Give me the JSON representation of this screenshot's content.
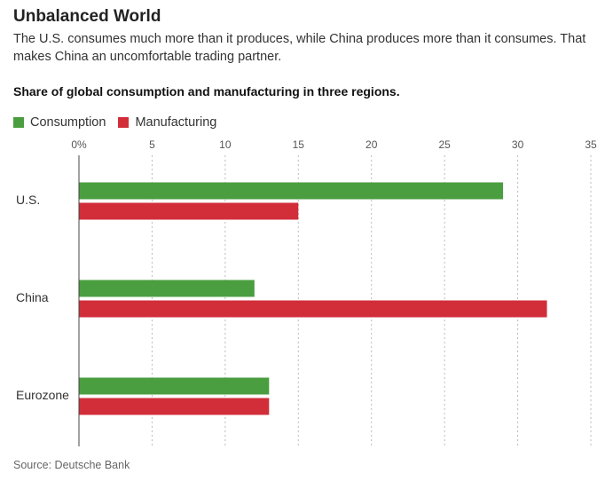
{
  "header": {
    "title": "Unbalanced World",
    "dek": "The U.S. consumes much more than it produces, while China produces more than it consumes. That makes China an uncomfortable trading partner.",
    "chart_title": "Share of global consumption and manufacturing in three regions."
  },
  "footer": {
    "source": "Source: Deutsche Bank"
  },
  "colors": {
    "consumption": "#4a9e3f",
    "manufacturing": "#d12e3a",
    "grid": "#bbbbbb",
    "axis": "#444444"
  },
  "chart_data": {
    "type": "bar",
    "orientation": "horizontal",
    "title": "Share of global consumption and manufacturing in three regions.",
    "categories": [
      "U.S.",
      "China",
      "Eurozone"
    ],
    "series": [
      {
        "name": "Consumption",
        "values": [
          29,
          12,
          13
        ]
      },
      {
        "name": "Manufacturing",
        "values": [
          15,
          32,
          13
        ]
      }
    ],
    "xlim": [
      0,
      35
    ],
    "xticks": [
      "0%",
      "5",
      "10",
      "15",
      "20",
      "25",
      "30",
      "35"
    ],
    "grid": true,
    "legend": "top-left"
  }
}
